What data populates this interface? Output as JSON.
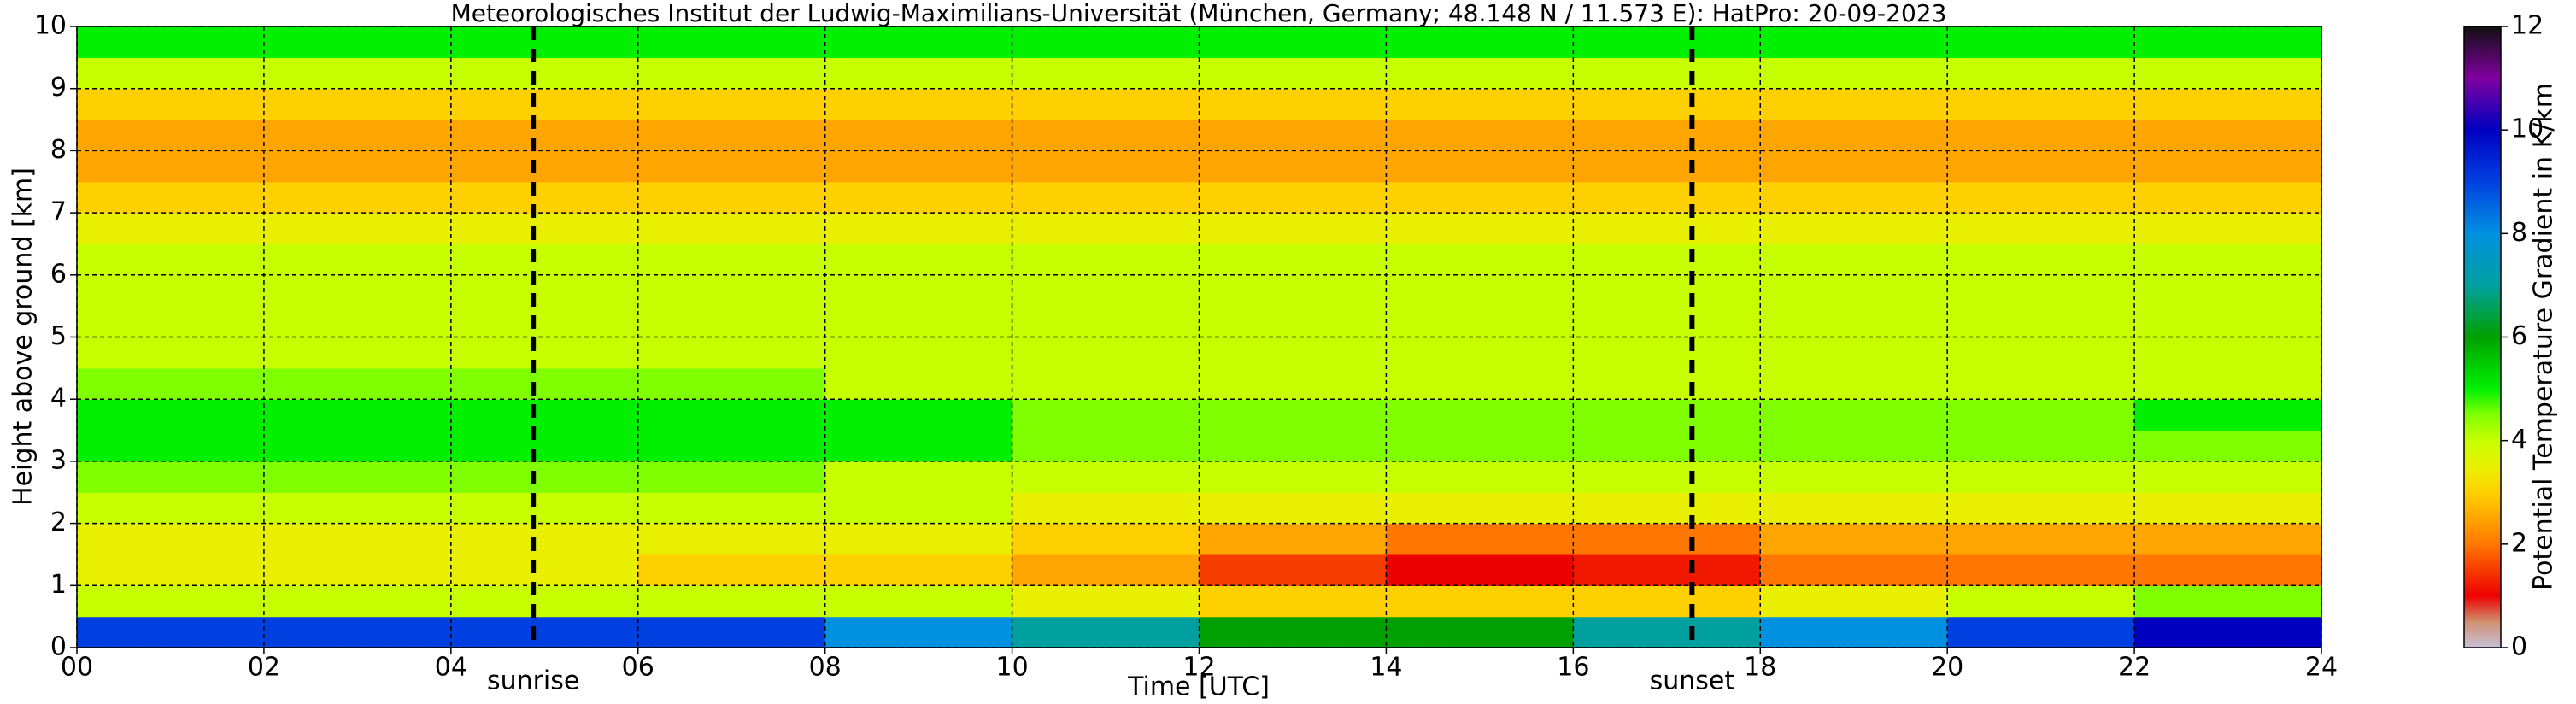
{
  "chart_data": {
    "type": "heatmap",
    "title": "Meteorologisches Institut der Ludwig-Maximilians-Universität (München, Germany; 48.148 N / 11.573 E):    HatPro: 20-09-2023",
    "xlabel": "Time [UTC]",
    "ylabel": "Height above ground [km]",
    "colorbar_label": "Potential Temperature Gradient in K/km",
    "xbins": [
      0,
      2,
      4,
      6,
      8,
      10,
      12,
      14,
      16,
      18,
      20,
      22,
      24
    ],
    "ybins": [
      0,
      0.5,
      1,
      1.5,
      2,
      2.5,
      3,
      3.5,
      4,
      4.5,
      5,
      5.5,
      6,
      6.5,
      7,
      7.5,
      8,
      8.5,
      9,
      9.5,
      10
    ],
    "values": [
      [
        9,
        9,
        9,
        9,
        8,
        7,
        6,
        6,
        7,
        8,
        9,
        10
      ],
      [
        4,
        4,
        4,
        4,
        4,
        3.5,
        3,
        3,
        3,
        3.5,
        4,
        4.5
      ],
      [
        3.5,
        3.5,
        3.5,
        3,
        3,
        2.5,
        1.5,
        1,
        1.2,
        2,
        2,
        2
      ],
      [
        3.5,
        3.5,
        3.5,
        3.5,
        3.5,
        3,
        2.5,
        2,
        2,
        2.5,
        2.5,
        2.5
      ],
      [
        4,
        4,
        4,
        4,
        4,
        3.5,
        3.5,
        3.5,
        3.5,
        3.5,
        3.5,
        3.5
      ],
      [
        4.5,
        4.5,
        4.5,
        4.5,
        4,
        4,
        4,
        4,
        4,
        4,
        4,
        4
      ],
      [
        5,
        5,
        5,
        5,
        5,
        4.5,
        4.5,
        4.5,
        4.5,
        4.5,
        4.5,
        4.5
      ],
      [
        5,
        5,
        5,
        5,
        5,
        4.5,
        4.5,
        4.5,
        4.5,
        4.5,
        4.5,
        5
      ],
      [
        4.5,
        4.5,
        4.5,
        4.5,
        4,
        4,
        4,
        4,
        4,
        4,
        4,
        4
      ],
      [
        4,
        4,
        4,
        4,
        4,
        4,
        4,
        4,
        4,
        4,
        4,
        4
      ],
      [
        4,
        4,
        4,
        4,
        4,
        4,
        4,
        4,
        4,
        4,
        4,
        4
      ],
      [
        4,
        4,
        4,
        4,
        4,
        4,
        4,
        4,
        4,
        4,
        4,
        4
      ],
      [
        4,
        4,
        4,
        4,
        4,
        4,
        4,
        4,
        4,
        4,
        4,
        4
      ],
      [
        3.5,
        3.5,
        3.5,
        3.5,
        3.5,
        3.5,
        3.5,
        3.5,
        3.5,
        3.5,
        3.5,
        3.5
      ],
      [
        3,
        3,
        3,
        3,
        3,
        3,
        3,
        3,
        3,
        3,
        3,
        3
      ],
      [
        2.5,
        2.5,
        2.5,
        2.5,
        2.5,
        2.5,
        2.5,
        2.5,
        2.5,
        2.5,
        2.5,
        2.5
      ],
      [
        2.5,
        2.5,
        2.5,
        2.5,
        2.5,
        2.5,
        2.5,
        2.5,
        2.5,
        2.5,
        2.5,
        2.5
      ],
      [
        3,
        3,
        3,
        3,
        3,
        3,
        3,
        3,
        3,
        3,
        3,
        3
      ],
      [
        4,
        4,
        4,
        4,
        4,
        4,
        4,
        4,
        4,
        4,
        4,
        4
      ],
      [
        5,
        5,
        5,
        5,
        5,
        5,
        5,
        5,
        5,
        5,
        5,
        5
      ]
    ],
    "colorscale": [
      [
        0,
        "#c8c0d8"
      ],
      [
        0.5,
        "#d09070"
      ],
      [
        1,
        "#ee0000"
      ],
      [
        2,
        "#ff7700"
      ],
      [
        2.5,
        "#ffa500"
      ],
      [
        3,
        "#ffd000"
      ],
      [
        3.5,
        "#e8f000"
      ],
      [
        4,
        "#c8ff00"
      ],
      [
        4.5,
        "#80ff00"
      ],
      [
        5,
        "#00f000"
      ],
      [
        6,
        "#00a000"
      ],
      [
        7,
        "#00a0a0"
      ],
      [
        8,
        "#0090e0"
      ],
      [
        9,
        "#0040e0"
      ],
      [
        10,
        "#0000c0"
      ],
      [
        11,
        "#8000a0"
      ],
      [
        12,
        "#101010"
      ]
    ],
    "xlim": [
      0,
      24
    ],
    "ylim": [
      0,
      10
    ],
    "clim": [
      0,
      12
    ],
    "xticks": [
      {
        "value": 0,
        "label": "00"
      },
      {
        "value": 2,
        "label": "02"
      },
      {
        "value": 4,
        "label": "04"
      },
      {
        "value": 6,
        "label": "06"
      },
      {
        "value": 8,
        "label": "08"
      },
      10,
      12,
      14,
      16,
      18,
      20,
      22,
      24
    ],
    "yticks": [
      0,
      1,
      2,
      3,
      4,
      5,
      6,
      7,
      8,
      9,
      10
    ],
    "cticks": [
      0,
      2,
      4,
      6,
      8,
      10,
      12
    ],
    "grid": true,
    "annotations": [
      {
        "x": 4.88,
        "label": "sunrise"
      },
      {
        "x": 17.27,
        "label": "sunset"
      }
    ]
  }
}
